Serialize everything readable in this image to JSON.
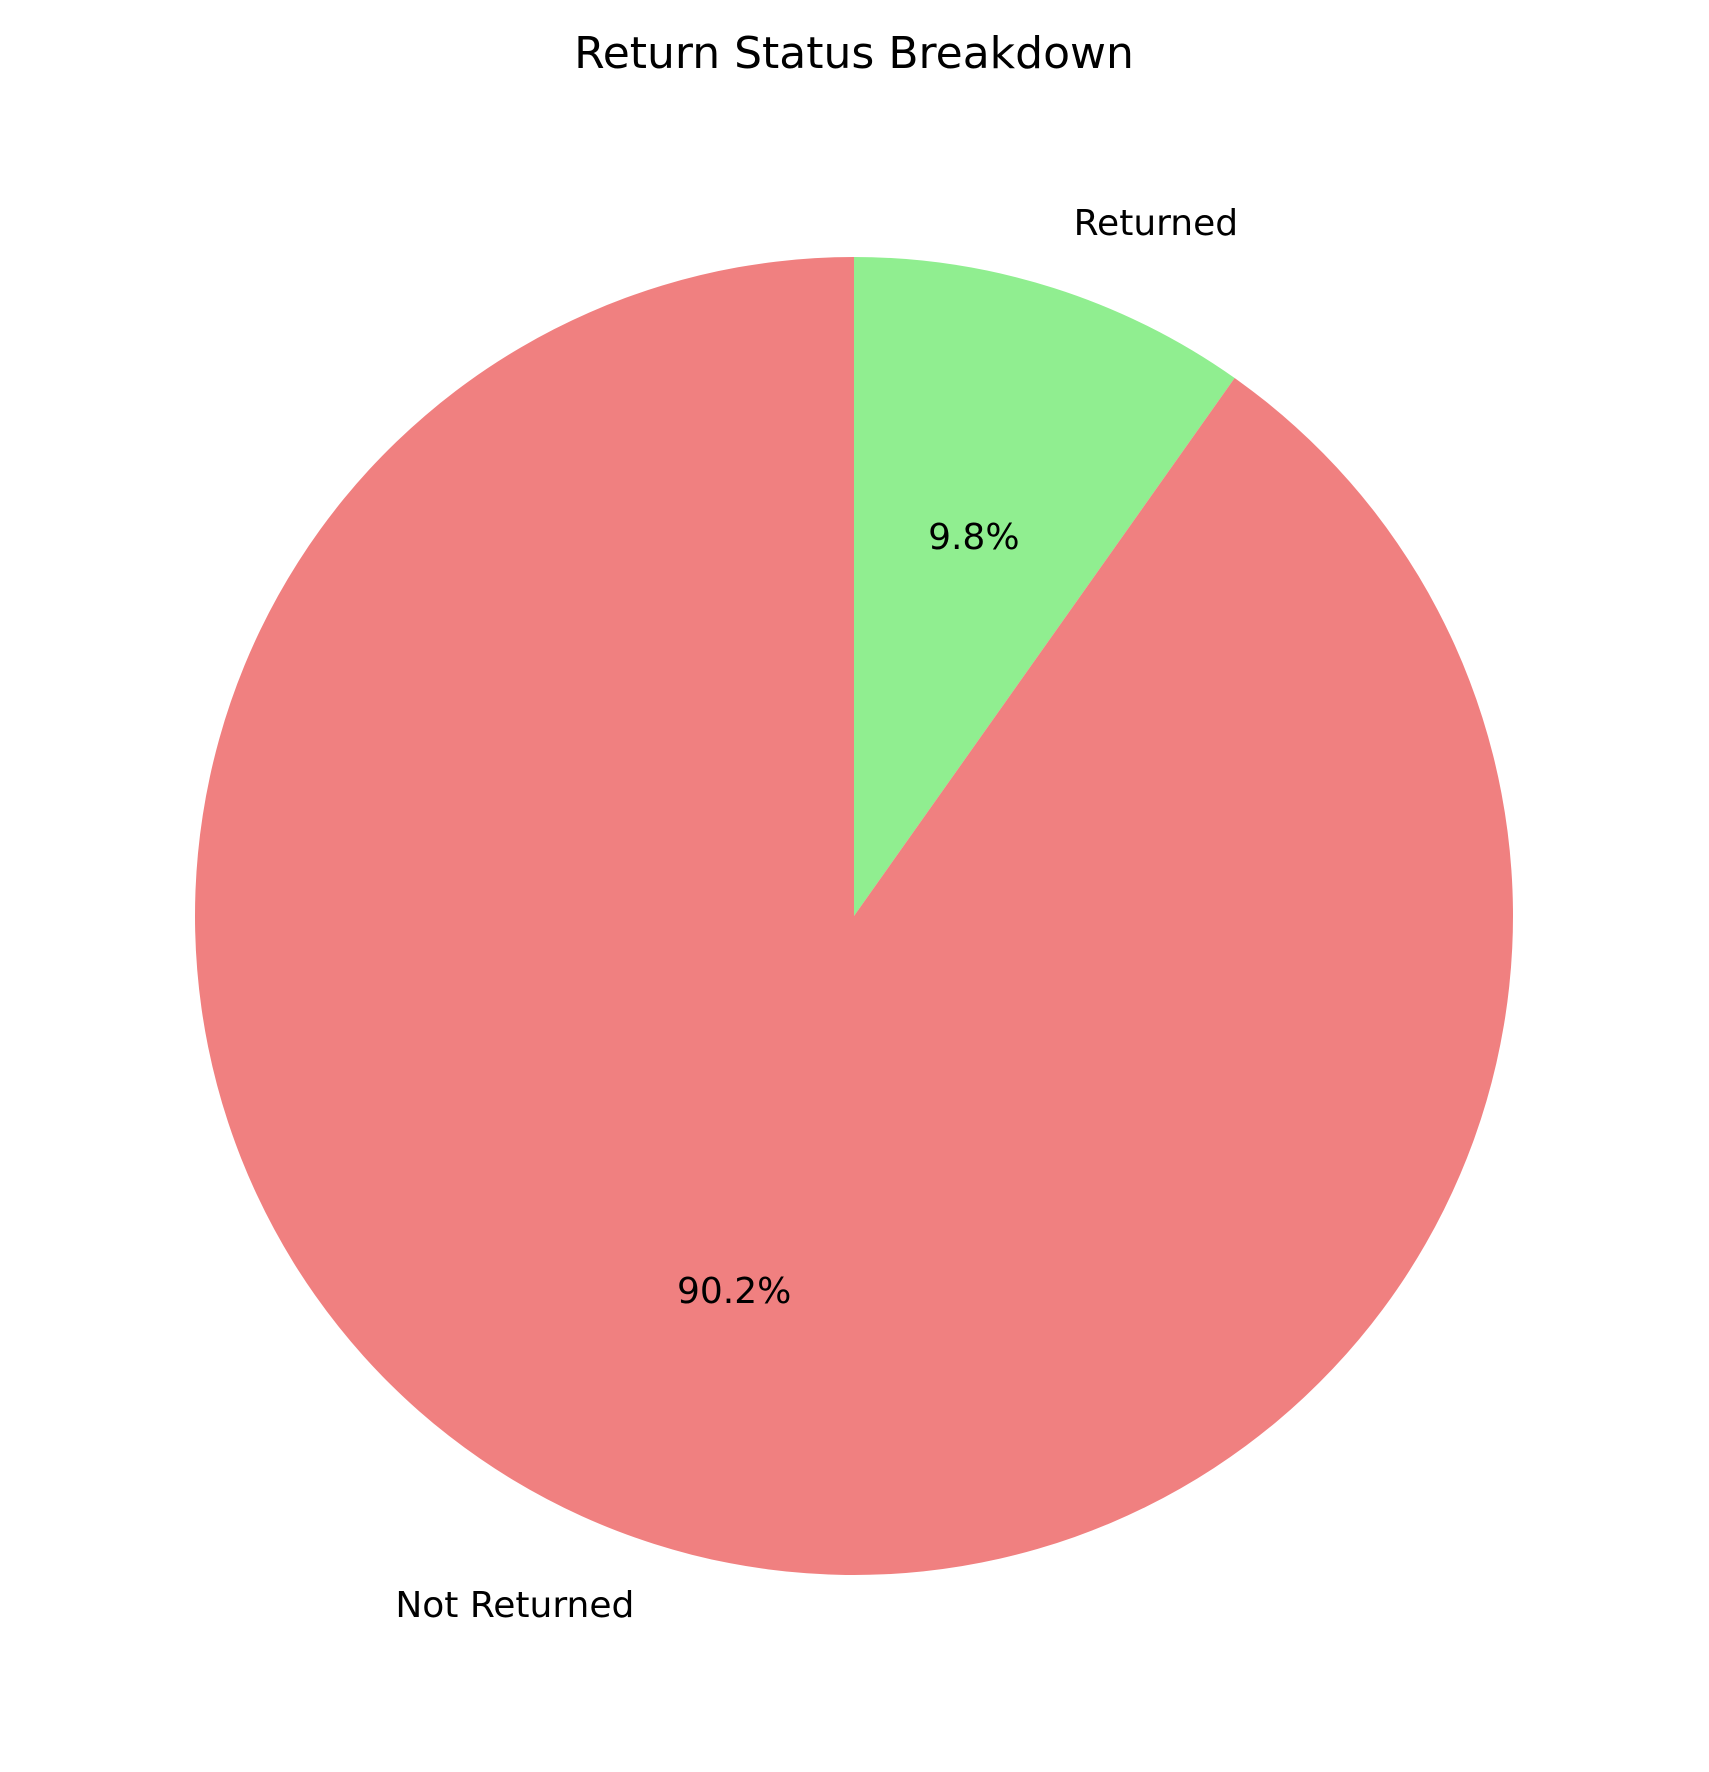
{
  "chart_data": {
    "type": "pie",
    "title": "Return Status Breakdown",
    "start_angle_deg": 90,
    "direction": "clockwise",
    "slices": [
      {
        "label": "Returned",
        "value": 9.8,
        "pct_label": "9.8%",
        "color": "#90EE90"
      },
      {
        "label": "Not Returned",
        "value": 90.2,
        "pct_label": "90.2%",
        "color": "#F08080"
      }
    ]
  }
}
